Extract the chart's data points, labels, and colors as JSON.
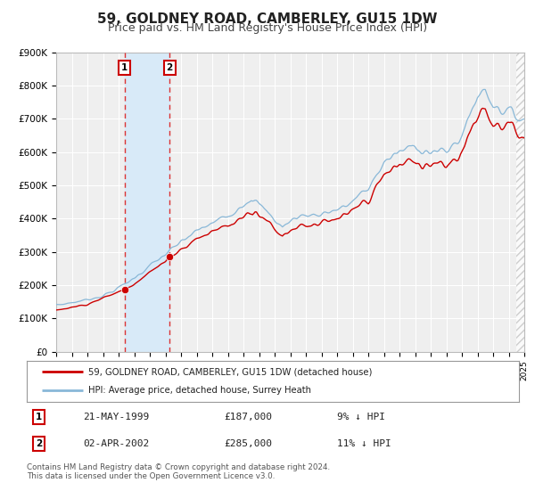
{
  "title": "59, GOLDNEY ROAD, CAMBERLEY, GU15 1DW",
  "subtitle": "Price paid vs. HM Land Registry's House Price Index (HPI)",
  "ylim": [
    0,
    900000
  ],
  "yticks": [
    0,
    100000,
    200000,
    300000,
    400000,
    500000,
    600000,
    700000,
    800000,
    900000
  ],
  "ytick_labels": [
    "£0",
    "£100K",
    "£200K",
    "£300K",
    "£400K",
    "£500K",
    "£600K",
    "£700K",
    "£800K",
    "£900K"
  ],
  "background_color": "#ffffff",
  "plot_bg_color": "#efefef",
  "grid_color": "#ffffff",
  "red_line_color": "#cc0000",
  "blue_line_color": "#89b8d8",
  "sale1_x": 1999.38,
  "sale1_y": 187000,
  "sale2_x": 2002.27,
  "sale2_y": 285000,
  "shade_color": "#d8eaf8",
  "hatch_color": "#cccccc",
  "vline_color": "#dd3333",
  "legend_label_red": "59, GOLDNEY ROAD, CAMBERLEY, GU15 1DW (detached house)",
  "legend_label_blue": "HPI: Average price, detached house, Surrey Heath",
  "table_row1": [
    "1",
    "21-MAY-1999",
    "£187,000",
    "9% ↓ HPI"
  ],
  "table_row2": [
    "2",
    "02-APR-2002",
    "£285,000",
    "11% ↓ HPI"
  ],
  "footnote": "Contains HM Land Registry data © Crown copyright and database right 2024.\nThis data is licensed under the Open Government Licence v3.0.",
  "xmin": 1995,
  "xmax": 2025,
  "hatch_start": 2024.5,
  "title_fontsize": 11,
  "subtitle_fontsize": 9
}
